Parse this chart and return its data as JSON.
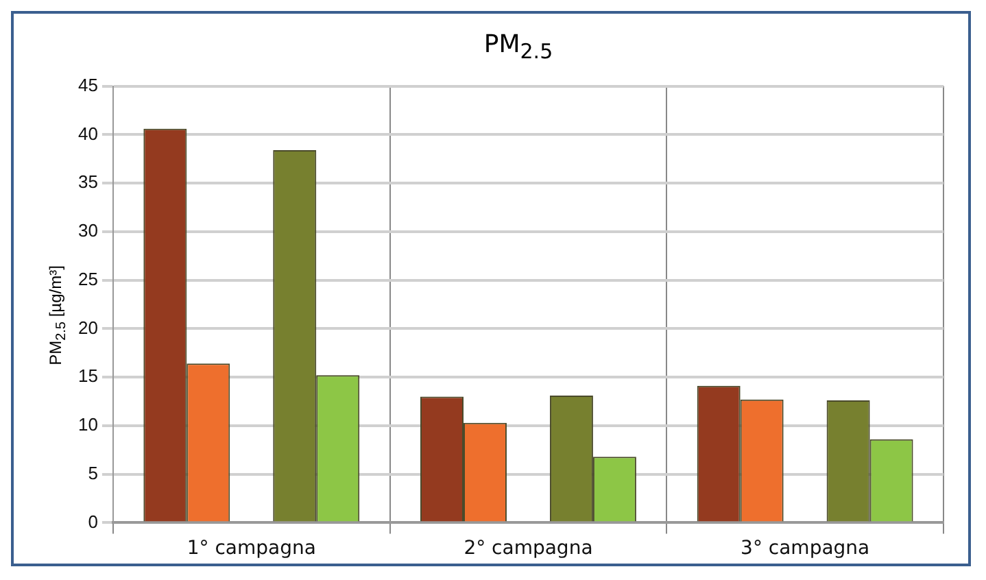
{
  "chart_data": {
    "type": "bar",
    "title": "PM$_{2.5}$",
    "ylabel": "PM$_{2.5}$ [µg/m³]",
    "categories": [
      "1° campagna",
      "2° campagna",
      "3° campagna"
    ],
    "series": [
      {
        "color": "#943a1f",
        "values": [
          40.6,
          13.0,
          14.1
        ]
      },
      {
        "color": "#ee6f2d",
        "values": [
          16.4,
          10.3,
          12.7
        ]
      },
      {
        "color": "#77802f",
        "values": [
          38.4,
          13.1,
          12.6
        ]
      },
      {
        "color": "#8dc646",
        "values": [
          15.2,
          6.8,
          8.6
        ]
      }
    ],
    "ylim": [
      0,
      45
    ],
    "yticks": [
      0,
      5,
      10,
      15,
      20,
      25,
      30,
      35,
      40,
      45
    ],
    "grid": true,
    "legend": false
  }
}
